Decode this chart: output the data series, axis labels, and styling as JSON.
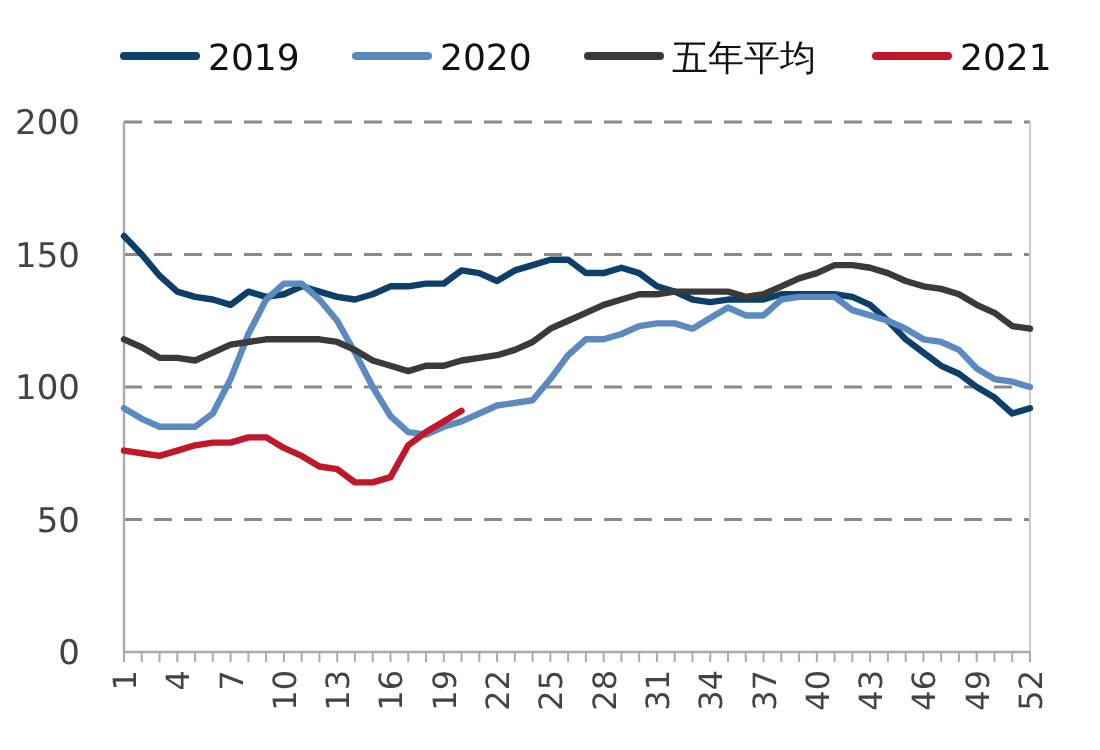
{
  "chart_data": {
    "type": "line",
    "categories": [
      "1",
      null,
      null,
      "4",
      null,
      null,
      "7",
      null,
      null,
      "10",
      null,
      null,
      "13",
      null,
      null,
      "16",
      null,
      null,
      "19",
      null,
      null,
      "22",
      null,
      null,
      "25",
      null,
      null,
      "28",
      null,
      null,
      "31",
      null,
      null,
      "34",
      null,
      null,
      "37",
      null,
      null,
      "40",
      null,
      null,
      "43",
      null,
      null,
      "46",
      null,
      null,
      "49",
      null,
      null,
      "52"
    ],
    "series": [
      {
        "name": "2019",
        "color": "#0c3f6a",
        "values": [
          157,
          150,
          142,
          136,
          134,
          133,
          131,
          136,
          134,
          135,
          138,
          136,
          134,
          133,
          135,
          138,
          138,
          139,
          139,
          144,
          143,
          140,
          144,
          146,
          148,
          148,
          143,
          143,
          145,
          143,
          138,
          136,
          133,
          132,
          133,
          133,
          133,
          135,
          135,
          135,
          135,
          134,
          131,
          125,
          118,
          113,
          108,
          105,
          100,
          96,
          90,
          92
        ]
      },
      {
        "name": "2020",
        "color": "#5b8ac0",
        "values": [
          92,
          88,
          85,
          85,
          85,
          90,
          103,
          120,
          133,
          139,
          139,
          133,
          125,
          113,
          100,
          89,
          83,
          82,
          85,
          87,
          90,
          93,
          94,
          95,
          103,
          112,
          118,
          118,
          120,
          123,
          124,
          124,
          122,
          126,
          130,
          127,
          127,
          133,
          134,
          134,
          134,
          129,
          127,
          125,
          122,
          118,
          117,
          114,
          107,
          103,
          102,
          100
        ]
      },
      {
        "name": "五年平均",
        "color": "#3a3a3a",
        "values": [
          118,
          115,
          111,
          111,
          110,
          113,
          116,
          117,
          118,
          118,
          118,
          118,
          117,
          114,
          110,
          108,
          106,
          108,
          108,
          110,
          111,
          112,
          114,
          117,
          122,
          125,
          128,
          131,
          133,
          135,
          135,
          136,
          136,
          136,
          136,
          134,
          135,
          138,
          141,
          143,
          146,
          146,
          145,
          143,
          140,
          138,
          137,
          135,
          131,
          128,
          123,
          122
        ]
      },
      {
        "name": "2021",
        "color": "#c0172b",
        "values": [
          76,
          75,
          74,
          76,
          78,
          79,
          79,
          81,
          81,
          77,
          74,
          70,
          69,
          64,
          64,
          66,
          78,
          83,
          87,
          91,
          null,
          null,
          null,
          null,
          null,
          null,
          null,
          null,
          null,
          null,
          null,
          null,
          null,
          null,
          null,
          null,
          null,
          null,
          null,
          null,
          null,
          null,
          null,
          null,
          null,
          null,
          null,
          null,
          null,
          null,
          null,
          null
        ]
      }
    ],
    "ylim": [
      0,
      200
    ],
    "yticks": [
      0,
      50,
      100,
      150,
      200
    ],
    "grid": "y",
    "legend": "top"
  }
}
